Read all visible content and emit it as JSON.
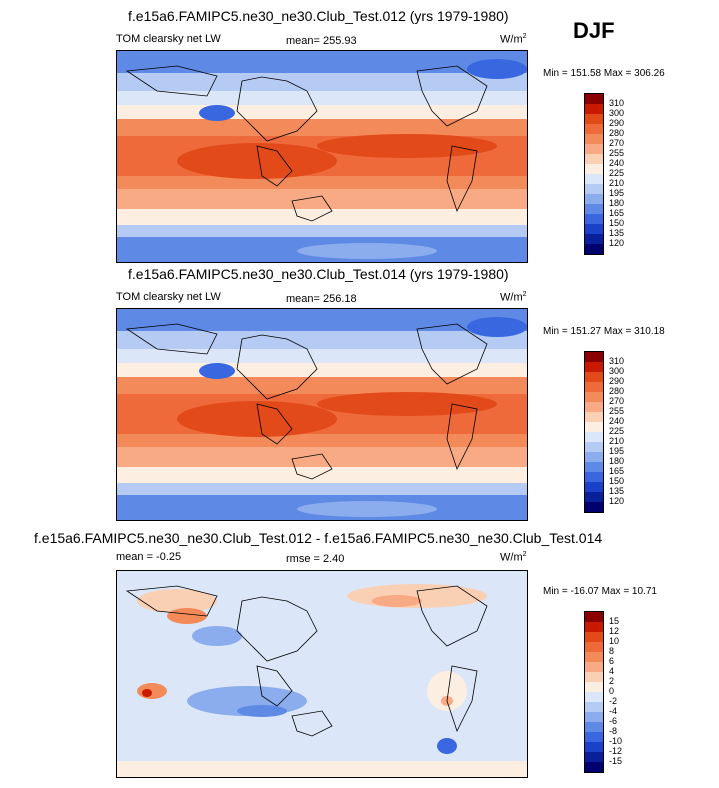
{
  "season": "DJF",
  "panels": [
    {
      "title": "f.e15a6.FAMIPC5.ne30_ne30.Club_Test.012 (yrs 1979-1980)",
      "left_label": "TOM clearsky net LW",
      "center_label": "mean= 255.93",
      "units": "W/m",
      "units_sup": "2",
      "minmax": "Min = 151.58 Max = 306.26",
      "levels": [
        "310",
        "300",
        "290",
        "280",
        "270",
        "255",
        "240",
        "225",
        "210",
        "195",
        "180",
        "165",
        "150",
        "135",
        "120"
      ]
    },
    {
      "title": "f.e15a6.FAMIPC5.ne30_ne30.Club_Test.014 (yrs 1979-1980)",
      "left_label": "TOM clearsky net LW",
      "center_label": "mean= 256.18",
      "units": "W/m",
      "units_sup": "2",
      "minmax": "Min = 151.27 Max = 310.18",
      "levels": [
        "310",
        "300",
        "290",
        "280",
        "270",
        "255",
        "240",
        "225",
        "210",
        "195",
        "180",
        "165",
        "150",
        "135",
        "120"
      ]
    },
    {
      "title": "f.e15a6.FAMIPC5.ne30_ne30.Club_Test.012 - f.e15a6.FAMIPC5.ne30_ne30.Club_Test.014",
      "left_label": "mean =  -0.25",
      "center_label": "rmse =  2.40",
      "units": "W/m",
      "units_sup": "2",
      "minmax": "Min = -16.07 Max =  10.71",
      "levels": [
        "15",
        "12",
        "10",
        "8",
        "6",
        "4",
        "2",
        "0",
        "-2",
        "-4",
        "-6",
        "-8",
        "-10",
        "-12",
        "-15"
      ]
    }
  ],
  "colors": {
    "abs_scale": [
      "#8b0000",
      "#c91a00",
      "#e34a1a",
      "#ee6a3a",
      "#f38a5a",
      "#f7aa84",
      "#fad0b4",
      "#fdeee2",
      "#dbe6f8",
      "#b5cbf3",
      "#8badee",
      "#5e8ae6",
      "#3867df",
      "#1a42c8",
      "#0a1f9a",
      "#00006e"
    ],
    "diff_scale": [
      "#8b0000",
      "#c91a00",
      "#e34a1a",
      "#ee6a3a",
      "#f38a5a",
      "#f7aa84",
      "#fad0b4",
      "#fdeee2",
      "#dbe6f8",
      "#b5cbf3",
      "#8badee",
      "#5e8ae6",
      "#3867df",
      "#1a42c8",
      "#0a1f9a",
      "#00006e"
    ]
  }
}
